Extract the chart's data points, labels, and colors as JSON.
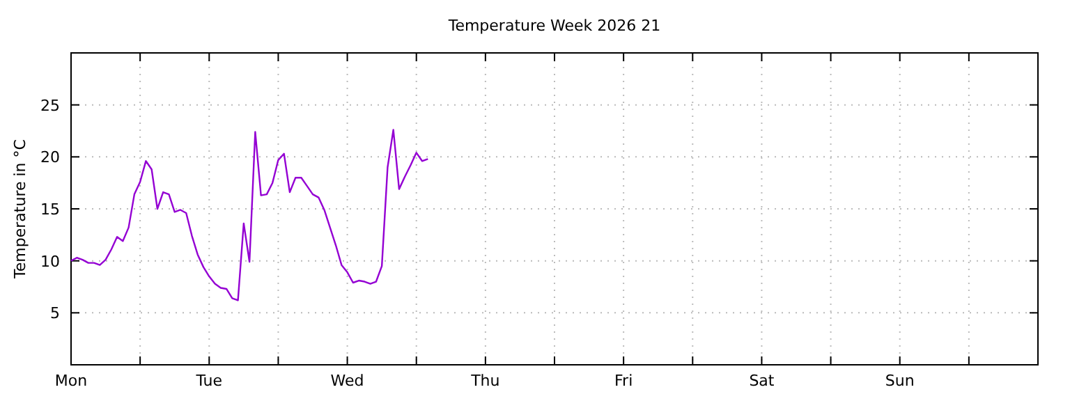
{
  "chart_data": {
    "type": "line",
    "title": "Temperature Week 2026 21",
    "ylabel": "Temperature in °C",
    "categories": [
      "Mon",
      null,
      null,
      null,
      null,
      null,
      null,
      null,
      null,
      null,
      null,
      null,
      null,
      null,
      null,
      null,
      null,
      null,
      null,
      null,
      null,
      null,
      null,
      null,
      "Tue",
      null,
      null,
      null,
      null,
      null,
      null,
      null,
      null,
      null,
      null,
      null,
      null,
      null,
      null,
      null,
      null,
      null,
      null,
      null,
      null,
      null,
      null,
      null,
      "Wed",
      null,
      null,
      null,
      null,
      null,
      null,
      null,
      null,
      null,
      null,
      null,
      null,
      null,
      null,
      null,
      null,
      null,
      null,
      null,
      null,
      null,
      null,
      null,
      "Thu",
      null,
      null,
      null,
      null,
      null,
      null,
      null,
      null,
      null,
      null,
      null,
      null,
      null,
      null,
      null,
      null,
      null,
      null,
      null,
      null,
      null,
      null,
      null,
      "Fri",
      null,
      null,
      null,
      null,
      null,
      null,
      null,
      null,
      null,
      null,
      null,
      null,
      null,
      null,
      null,
      null,
      null,
      null,
      null,
      null,
      null,
      null,
      null,
      "Sat",
      null,
      null,
      null,
      null,
      null,
      null,
      null,
      null,
      null,
      null,
      null,
      null,
      null,
      null,
      null,
      null,
      null,
      null,
      null,
      null,
      null,
      null,
      null,
      "Sun",
      null,
      null,
      null,
      null,
      null,
      null,
      null,
      null,
      null,
      null,
      null,
      null,
      null,
      null,
      null,
      null,
      null,
      null,
      null,
      null,
      null,
      null,
      null,
      null
    ],
    "ylim": [
      0,
      30
    ],
    "yticks": [
      5,
      10,
      15,
      20,
      25
    ],
    "grid": true,
    "line_style": "solid",
    "marker": "none",
    "series": [
      {
        "color": "#9400d3",
        "values": [
          10.0,
          10.3,
          10.1,
          9.8,
          9.8,
          9.6,
          10.1,
          11.1,
          12.3,
          11.9,
          13.2,
          16.4,
          17.6,
          19.6,
          18.8,
          15.0,
          16.6,
          16.4,
          14.7,
          14.9,
          14.6,
          12.4,
          10.6,
          9.4,
          8.5,
          7.8,
          7.4,
          7.3,
          6.4,
          6.2,
          13.6,
          9.9,
          22.4,
          16.3,
          16.4,
          17.5,
          19.7,
          20.3,
          16.6,
          18.0,
          18.0,
          17.2,
          16.4,
          16.1,
          14.9,
          13.2,
          11.5,
          9.6,
          8.9,
          7.9,
          8.1,
          8.0,
          7.8,
          8.0,
          9.5,
          19.0,
          22.6,
          16.9,
          18.1,
          19.2,
          20.4,
          19.6,
          19.8,
          null,
          null,
          null,
          null,
          null,
          null,
          null,
          null,
          null,
          null,
          null,
          null,
          null,
          null,
          null,
          null,
          null,
          null,
          null,
          null,
          null,
          null,
          null,
          null,
          null,
          null,
          null,
          null,
          null,
          null,
          null,
          null,
          null,
          null,
          null,
          null,
          null,
          null,
          null,
          null,
          null,
          null,
          null,
          null,
          null,
          null,
          null,
          null,
          null,
          null,
          null,
          null,
          null,
          null,
          null,
          null,
          null,
          null,
          null,
          null,
          null,
          null,
          null,
          null,
          null,
          null,
          null,
          null,
          null,
          null,
          null,
          null,
          null,
          null,
          null,
          null,
          null,
          null,
          null,
          null,
          null,
          null,
          null,
          null,
          null,
          null,
          null,
          null,
          null,
          null,
          null,
          null,
          null,
          null,
          null,
          null,
          null,
          null,
          null,
          null,
          null,
          null,
          null,
          null,
          null,
          null
        ]
      }
    ]
  }
}
